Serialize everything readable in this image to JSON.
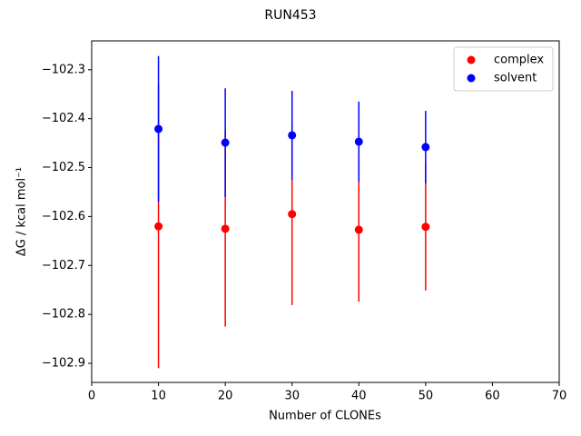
{
  "chart_data": {
    "type": "errorbar-scatter",
    "title": "RUN453",
    "xlabel": "Number of CLONEs",
    "ylabel": "ΔG / kcal mol⁻¹",
    "series": [
      {
        "name": "complex",
        "color": "#ff0000",
        "x": [
          10,
          20,
          30,
          40,
          50
        ],
        "values": [
          -102.62,
          -102.625,
          -102.595,
          -102.627,
          -102.621
        ],
        "errors": [
          0.29,
          0.2,
          0.186,
          0.147,
          0.13
        ]
      },
      {
        "name": "solvent",
        "color": "#0000ff",
        "x": [
          10,
          20,
          30,
          40,
          50
        ],
        "values": [
          -102.421,
          -102.449,
          -102.434,
          -102.447,
          -102.458
        ],
        "errors": [
          0.149,
          0.111,
          0.091,
          0.082,
          0.074
        ]
      }
    ],
    "xlim": [
      0,
      70
    ],
    "xticks": [
      0,
      10,
      20,
      30,
      40,
      50,
      60,
      70
    ],
    "ylim": [
      -102.939,
      -102.241
    ],
    "yticks": [
      {
        "value": -102.9,
        "label": "−102.9"
      },
      {
        "value": -102.8,
        "label": "−102.8"
      },
      {
        "value": -102.7,
        "label": "−102.7"
      },
      {
        "value": -102.6,
        "label": "−102.6"
      },
      {
        "value": -102.5,
        "label": "−102.5"
      },
      {
        "value": -102.4,
        "label": "−102.4"
      },
      {
        "value": -102.3,
        "label": "−102.3"
      }
    ],
    "legend": "upper right",
    "grid": false
  }
}
